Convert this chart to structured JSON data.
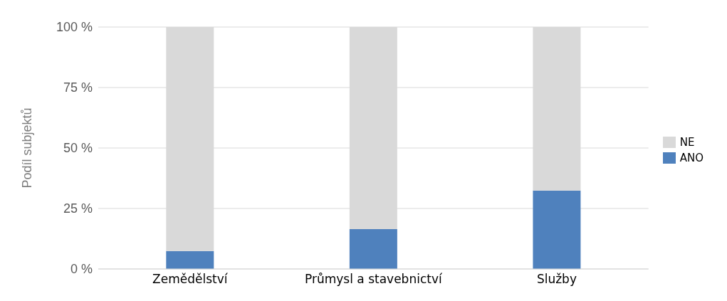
{
  "chart_data": {
    "type": "bar",
    "stacked": true,
    "ylabel": "Podíl subjektů",
    "categories": [
      "Zemědělství",
      "Průmysl a stavebnictví",
      "Služby"
    ],
    "series": [
      {
        "name": "ANO",
        "color": "#4f81bd",
        "values": [
          7.4,
          16.5,
          32.4
        ]
      },
      {
        "name": "NE",
        "color": "#d9d9d9",
        "values": [
          92.6,
          83.5,
          67.6
        ]
      }
    ],
    "ylim": [
      0,
      100
    ],
    "yticks": [
      {
        "value": 0,
        "label": "0 %"
      },
      {
        "value": 25,
        "label": "25 %"
      },
      {
        "value": 50,
        "label": "50 %"
      },
      {
        "value": 75,
        "label": "75 %"
      },
      {
        "value": 100,
        "label": "100 %"
      }
    ],
    "grid": "y",
    "legend": "right"
  }
}
